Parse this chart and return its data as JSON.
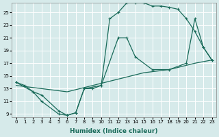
{
  "xlabel": "Humidex (Indice chaleur)",
  "bg_color": "#d6eaea",
  "grid_color": "#ffffff",
  "line_color": "#1a6b5a",
  "xlim": [
    -0.5,
    23.5
  ],
  "ylim": [
    8.5,
    26.5
  ],
  "xticks": [
    0,
    1,
    2,
    3,
    4,
    5,
    6,
    7,
    8,
    9,
    10,
    11,
    12,
    13,
    14,
    15,
    16,
    17,
    18,
    19,
    20,
    21,
    22,
    23
  ],
  "yticks": [
    9,
    11,
    13,
    15,
    17,
    19,
    21,
    23,
    25
  ],
  "curve1_x": [
    0,
    1,
    2,
    3,
    5,
    6,
    7,
    8,
    9,
    10,
    11,
    12,
    13,
    14,
    15,
    16,
    17,
    18,
    19,
    20,
    21,
    22,
    23
  ],
  "curve1_y": [
    14,
    13.5,
    12.5,
    11,
    9,
    8.8,
    9.2,
    13,
    13,
    13.5,
    24,
    25,
    26.5,
    26.5,
    26.5,
    26,
    26,
    25.8,
    25.5,
    24,
    22,
    19.5,
    17.5
  ],
  "curve2_x": [
    0,
    2,
    3,
    5,
    6,
    7,
    8,
    10,
    12,
    13,
    14,
    16,
    18,
    20,
    21,
    22,
    23
  ],
  "curve2_y": [
    14,
    12.5,
    12,
    9.5,
    8.8,
    9.2,
    13,
    13.5,
    21,
    21,
    18,
    16,
    16,
    17,
    24,
    19.5,
    17.5
  ],
  "curve3_x": [
    0,
    3,
    6,
    9,
    12,
    15,
    18,
    21,
    23
  ],
  "curve3_y": [
    13.5,
    13,
    12.5,
    13.5,
    14.5,
    15.5,
    16,
    17,
    17.5
  ]
}
